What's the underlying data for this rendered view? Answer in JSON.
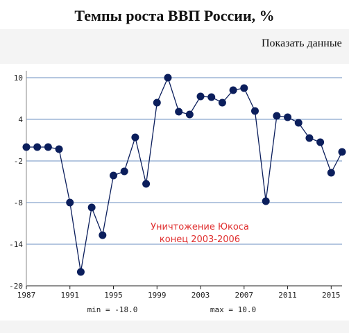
{
  "title": "Темпы роста ВВП России, %",
  "show_data_label": "Показать данные",
  "chart_data": {
    "type": "line",
    "x": [
      1987,
      1988,
      1989,
      1990,
      1991,
      1992,
      1993,
      1994,
      1995,
      1996,
      1997,
      1998,
      1999,
      2000,
      2001,
      2002,
      2003,
      2004,
      2005,
      2006,
      2007,
      2008,
      2009,
      2010,
      2011,
      2012,
      2013,
      2014,
      2015,
      2016
    ],
    "series": [
      {
        "values": [
          0,
          0,
          0,
          -0.3,
          -8,
          -18,
          -8.7,
          -12.7,
          -4.1,
          -3.5,
          1.4,
          -5.3,
          6.4,
          10,
          5.1,
          4.7,
          7.3,
          7.2,
          6.4,
          8.2,
          8.5,
          5.2,
          -7.8,
          4.5,
          4.3,
          3.5,
          1.3,
          0.7,
          -3.7,
          -0.7
        ]
      }
    ],
    "xlim": [
      1987,
      2016
    ],
    "ylim": [
      -20,
      10
    ],
    "xticks": [
      1987,
      1991,
      1995,
      1999,
      2003,
      2007,
      2011,
      2015
    ],
    "yticks": [
      10,
      4,
      -2,
      -8,
      -14,
      -20
    ],
    "xtick_labels": [
      "1987",
      "1991",
      "1995",
      "1999",
      "2003",
      "2007",
      "2011",
      "2015"
    ],
    "ytick_labels": [
      "10",
      "4",
      "-2",
      "-8",
      "-14",
      "-20"
    ],
    "grid": "horizontal",
    "colors": {
      "line": "#0b1e5c",
      "marker": "#0b1e5c",
      "grid": "#6b8fc0"
    },
    "annotations": [
      "Уничтожение Юкоса",
      "конец 2003-2006"
    ],
    "stats": {
      "min": "min = -18.0",
      "max": "max = 10.0"
    }
  }
}
